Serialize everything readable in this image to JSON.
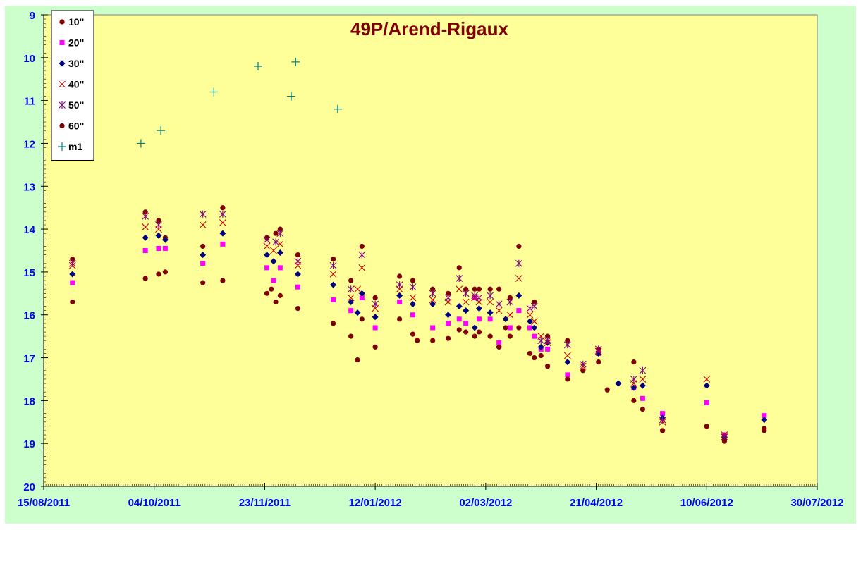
{
  "chart_data": {
    "type": "scatter",
    "title": "49P/Arend-Rigaux",
    "x_ticks": [
      "15/08/2011",
      "04/10/2011",
      "23/11/2011",
      "12/01/2012",
      "02/03/2012",
      "21/04/2012",
      "10/06/2012",
      "30/07/2012"
    ],
    "xlim": [
      "2011-08-15",
      "2012-07-30"
    ],
    "y_ticks": [
      "9",
      "10",
      "11",
      "12",
      "13",
      "14",
      "15",
      "16",
      "17",
      "18",
      "19",
      "20"
    ],
    "ylim": [
      9,
      20
    ],
    "y_reversed": true,
    "grid": false,
    "legend": "top-left",
    "colors": {
      "page_bg": "#ccffcc",
      "plot_bg": "#ffff99",
      "axis_text": "#0000ff",
      "title": "#800000"
    },
    "series": [
      {
        "name": "10''",
        "marker": "circle",
        "color": "#800000",
        "points": [
          [
            "2011-08-28",
            14.7
          ],
          [
            "2011-09-30",
            13.6
          ],
          [
            "2011-10-06",
            13.8
          ],
          [
            "2011-10-09",
            14.2
          ],
          [
            "2011-10-26",
            14.4
          ],
          [
            "2011-11-04",
            13.5
          ],
          [
            "2011-11-24",
            14.2
          ],
          [
            "2011-11-28",
            14.1
          ],
          [
            "2011-11-30",
            14.0
          ],
          [
            "2011-12-08",
            14.6
          ],
          [
            "2011-12-24",
            14.7
          ],
          [
            "2012-01-01",
            15.2
          ],
          [
            "2012-01-06",
            14.4
          ],
          [
            "2012-01-12",
            15.6
          ],
          [
            "2012-01-23",
            15.1
          ],
          [
            "2012-01-29",
            15.2
          ],
          [
            "2012-02-07",
            15.4
          ],
          [
            "2012-02-14",
            15.5
          ],
          [
            "2012-02-19",
            14.9
          ],
          [
            "2012-02-22",
            15.4
          ],
          [
            "2012-02-26",
            15.4
          ],
          [
            "2012-02-28",
            15.4
          ],
          [
            "2012-03-04",
            15.4
          ],
          [
            "2012-03-08",
            15.4
          ],
          [
            "2012-03-13",
            15.6
          ],
          [
            "2012-03-17",
            14.4
          ],
          [
            "2012-03-24",
            15.7
          ],
          [
            "2012-03-30",
            16.5
          ],
          [
            "2012-04-08",
            16.6
          ],
          [
            "2012-04-22",
            16.8
          ],
          [
            "2012-05-08",
            17.1
          ],
          [
            "2012-05-21",
            18.7
          ],
          [
            "2012-06-10",
            18.6
          ],
          [
            "2012-06-18",
            18.9
          ],
          [
            "2012-07-06",
            18.7
          ]
        ]
      },
      {
        "name": "20''",
        "marker": "square",
        "color": "#ff00ff",
        "points": [
          [
            "2011-08-28",
            15.25
          ],
          [
            "2011-09-30",
            14.5
          ],
          [
            "2011-10-06",
            14.45
          ],
          [
            "2011-10-09",
            14.45
          ],
          [
            "2011-10-26",
            14.8
          ],
          [
            "2011-11-04",
            14.35
          ],
          [
            "2011-11-24",
            14.9
          ],
          [
            "2011-11-27",
            15.2
          ],
          [
            "2011-11-30",
            14.9
          ],
          [
            "2011-12-08",
            15.35
          ],
          [
            "2011-12-24",
            15.65
          ],
          [
            "2012-01-01",
            15.9
          ],
          [
            "2012-01-06",
            15.6
          ],
          [
            "2012-01-12",
            16.3
          ],
          [
            "2012-01-23",
            15.7
          ],
          [
            "2012-01-29",
            16.0
          ],
          [
            "2012-02-07",
            16.3
          ],
          [
            "2012-02-14",
            16.2
          ],
          [
            "2012-02-19",
            16.1
          ],
          [
            "2012-02-22",
            16.2
          ],
          [
            "2012-02-26",
            15.6
          ],
          [
            "2012-02-28",
            16.1
          ],
          [
            "2012-03-04",
            16.1
          ],
          [
            "2012-03-08",
            16.65
          ],
          [
            "2012-03-13",
            16.3
          ],
          [
            "2012-03-17",
            15.9
          ],
          [
            "2012-03-22",
            16.3
          ],
          [
            "2012-03-24",
            16.5
          ],
          [
            "2012-03-27",
            16.8
          ],
          [
            "2012-03-30",
            16.8
          ],
          [
            "2012-04-08",
            17.4
          ],
          [
            "2012-04-22",
            16.9
          ],
          [
            "2012-05-08",
            17.7
          ],
          [
            "2012-05-12",
            17.95
          ],
          [
            "2012-05-21",
            18.3
          ],
          [
            "2012-06-10",
            18.05
          ],
          [
            "2012-06-18",
            18.8
          ],
          [
            "2012-07-06",
            18.35
          ]
        ]
      },
      {
        "name": "30''",
        "marker": "diamond",
        "color": "#000080",
        "points": [
          [
            "2011-08-28",
            15.05
          ],
          [
            "2011-09-30",
            14.2
          ],
          [
            "2011-10-06",
            14.15
          ],
          [
            "2011-10-09",
            14.25
          ],
          [
            "2011-10-26",
            14.6
          ],
          [
            "2011-11-04",
            14.1
          ],
          [
            "2011-11-24",
            14.6
          ],
          [
            "2011-11-27",
            14.75
          ],
          [
            "2011-11-30",
            14.55
          ],
          [
            "2011-12-08",
            15.05
          ],
          [
            "2011-12-24",
            15.3
          ],
          [
            "2012-01-01",
            15.7
          ],
          [
            "2012-01-04",
            15.95
          ],
          [
            "2012-01-06",
            15.5
          ],
          [
            "2012-01-12",
            16.05
          ],
          [
            "2012-01-23",
            15.55
          ],
          [
            "2012-01-29",
            15.75
          ],
          [
            "2012-02-07",
            15.75
          ],
          [
            "2012-02-14",
            16.0
          ],
          [
            "2012-02-19",
            15.8
          ],
          [
            "2012-02-22",
            15.9
          ],
          [
            "2012-02-26",
            16.3
          ],
          [
            "2012-02-28",
            15.85
          ],
          [
            "2012-03-04",
            15.95
          ],
          [
            "2012-03-08",
            16.75
          ],
          [
            "2012-03-11",
            16.1
          ],
          [
            "2012-03-17",
            15.55
          ],
          [
            "2012-03-22",
            16.15
          ],
          [
            "2012-03-24",
            16.3
          ],
          [
            "2012-03-27",
            16.75
          ],
          [
            "2012-03-30",
            16.65
          ],
          [
            "2012-04-08",
            17.1
          ],
          [
            "2012-04-22",
            16.9
          ],
          [
            "2012-05-01",
            17.6
          ],
          [
            "2012-05-08",
            17.7
          ],
          [
            "2012-05-12",
            17.65
          ],
          [
            "2012-05-21",
            18.4
          ],
          [
            "2012-06-10",
            17.65
          ],
          [
            "2012-06-18",
            18.85
          ],
          [
            "2012-07-06",
            18.45
          ]
        ]
      },
      {
        "name": "40''",
        "marker": "x",
        "color": "#cc0000",
        "points": [
          [
            "2011-08-28",
            14.85
          ],
          [
            "2011-09-30",
            13.95
          ],
          [
            "2011-10-06",
            14.0
          ],
          [
            "2011-10-26",
            13.9
          ],
          [
            "2011-11-04",
            13.85
          ],
          [
            "2011-11-24",
            14.4
          ],
          [
            "2011-11-27",
            14.5
          ],
          [
            "2011-11-30",
            14.35
          ],
          [
            "2011-12-08",
            14.85
          ],
          [
            "2011-12-24",
            15.05
          ],
          [
            "2012-01-01",
            15.6
          ],
          [
            "2012-01-04",
            15.4
          ],
          [
            "2012-01-06",
            14.9
          ],
          [
            "2012-01-12",
            15.85
          ],
          [
            "2012-01-23",
            15.4
          ],
          [
            "2012-01-29",
            15.6
          ],
          [
            "2012-02-07",
            15.65
          ],
          [
            "2012-02-14",
            15.7
          ],
          [
            "2012-02-19",
            15.4
          ],
          [
            "2012-02-22",
            15.7
          ],
          [
            "2012-02-26",
            15.6
          ],
          [
            "2012-02-28",
            15.7
          ],
          [
            "2012-03-04",
            15.7
          ],
          [
            "2012-03-08",
            15.9
          ],
          [
            "2012-03-13",
            16.0
          ],
          [
            "2012-03-17",
            15.15
          ],
          [
            "2012-03-22",
            16.0
          ],
          [
            "2012-03-24",
            16.15
          ],
          [
            "2012-03-27",
            16.5
          ],
          [
            "2012-03-30",
            16.65
          ],
          [
            "2012-04-08",
            16.95
          ],
          [
            "2012-04-15",
            17.2
          ],
          [
            "2012-04-22",
            16.85
          ],
          [
            "2012-05-08",
            17.6
          ],
          [
            "2012-05-12",
            17.5
          ],
          [
            "2012-05-21",
            18.5
          ],
          [
            "2012-06-10",
            17.5
          ],
          [
            "2012-06-18",
            18.8
          ]
        ]
      },
      {
        "name": "50''",
        "marker": "star",
        "color": "#800080",
        "points": [
          [
            "2011-08-28",
            14.8
          ],
          [
            "2011-09-30",
            13.7
          ],
          [
            "2011-10-06",
            13.9
          ],
          [
            "2011-10-26",
            13.65
          ],
          [
            "2011-11-04",
            13.65
          ],
          [
            "2011-11-24",
            14.25
          ],
          [
            "2011-11-28",
            14.3
          ],
          [
            "2011-11-30",
            14.1
          ],
          [
            "2011-12-08",
            14.75
          ],
          [
            "2011-12-24",
            14.85
          ],
          [
            "2012-01-01",
            15.4
          ],
          [
            "2012-01-06",
            14.6
          ],
          [
            "2012-01-12",
            15.75
          ],
          [
            "2012-01-23",
            15.3
          ],
          [
            "2012-01-29",
            15.35
          ],
          [
            "2012-02-07",
            15.5
          ],
          [
            "2012-02-14",
            15.6
          ],
          [
            "2012-02-19",
            15.15
          ],
          [
            "2012-02-22",
            15.5
          ],
          [
            "2012-02-26",
            15.55
          ],
          [
            "2012-02-28",
            15.6
          ],
          [
            "2012-03-04",
            15.55
          ],
          [
            "2012-03-08",
            15.75
          ],
          [
            "2012-03-13",
            15.7
          ],
          [
            "2012-03-17",
            14.8
          ],
          [
            "2012-03-22",
            15.85
          ],
          [
            "2012-03-24",
            15.8
          ],
          [
            "2012-03-27",
            16.6
          ],
          [
            "2012-03-30",
            16.6
          ],
          [
            "2012-04-08",
            16.7
          ],
          [
            "2012-04-15",
            17.15
          ],
          [
            "2012-04-22",
            16.8
          ],
          [
            "2012-05-08",
            17.5
          ],
          [
            "2012-05-12",
            17.3
          ],
          [
            "2012-05-21",
            18.45
          ],
          [
            "2012-06-18",
            18.85
          ]
        ]
      },
      {
        "name": "60''",
        "marker": "circle",
        "color": "#800000",
        "points": [
          [
            "2011-08-28",
            15.7
          ],
          [
            "2011-09-30",
            15.15
          ],
          [
            "2011-10-06",
            15.05
          ],
          [
            "2011-10-09",
            15.0
          ],
          [
            "2011-10-26",
            15.25
          ],
          [
            "2011-11-04",
            15.2
          ],
          [
            "2011-11-24",
            15.5
          ],
          [
            "2011-11-26",
            15.4
          ],
          [
            "2011-11-28",
            15.7
          ],
          [
            "2011-11-30",
            15.55
          ],
          [
            "2011-12-08",
            15.85
          ],
          [
            "2011-12-24",
            16.2
          ],
          [
            "2012-01-01",
            16.5
          ],
          [
            "2012-01-04",
            17.05
          ],
          [
            "2012-01-06",
            16.1
          ],
          [
            "2012-01-12",
            16.75
          ],
          [
            "2012-01-23",
            16.1
          ],
          [
            "2012-01-29",
            16.45
          ],
          [
            "2012-01-31",
            16.6
          ],
          [
            "2012-02-07",
            16.6
          ],
          [
            "2012-02-14",
            16.55
          ],
          [
            "2012-02-19",
            16.35
          ],
          [
            "2012-02-22",
            16.4
          ],
          [
            "2012-02-26",
            16.5
          ],
          [
            "2012-02-28",
            16.4
          ],
          [
            "2012-03-04",
            16.5
          ],
          [
            "2012-03-08",
            16.75
          ],
          [
            "2012-03-11",
            16.3
          ],
          [
            "2012-03-13",
            16.5
          ],
          [
            "2012-03-17",
            16.3
          ],
          [
            "2012-03-22",
            16.9
          ],
          [
            "2012-03-24",
            17.0
          ],
          [
            "2012-03-27",
            16.95
          ],
          [
            "2012-03-30",
            17.2
          ],
          [
            "2012-04-08",
            17.5
          ],
          [
            "2012-04-15",
            17.3
          ],
          [
            "2012-04-22",
            17.1
          ],
          [
            "2012-04-26",
            17.75
          ],
          [
            "2012-05-08",
            18.0
          ],
          [
            "2012-05-12",
            18.2
          ],
          [
            "2012-05-21",
            18.7
          ],
          [
            "2012-06-18",
            18.95
          ],
          [
            "2012-07-06",
            18.65
          ]
        ]
      },
      {
        "name": "m1",
        "marker": "plus",
        "color": "#008080",
        "points": [
          [
            "2011-09-28",
            12.0
          ],
          [
            "2011-10-07",
            11.7
          ],
          [
            "2011-10-31",
            10.8
          ],
          [
            "2011-11-20",
            10.2
          ],
          [
            "2011-12-05",
            10.9
          ],
          [
            "2011-12-07",
            10.1
          ],
          [
            "2011-12-26",
            11.2
          ]
        ]
      }
    ]
  }
}
